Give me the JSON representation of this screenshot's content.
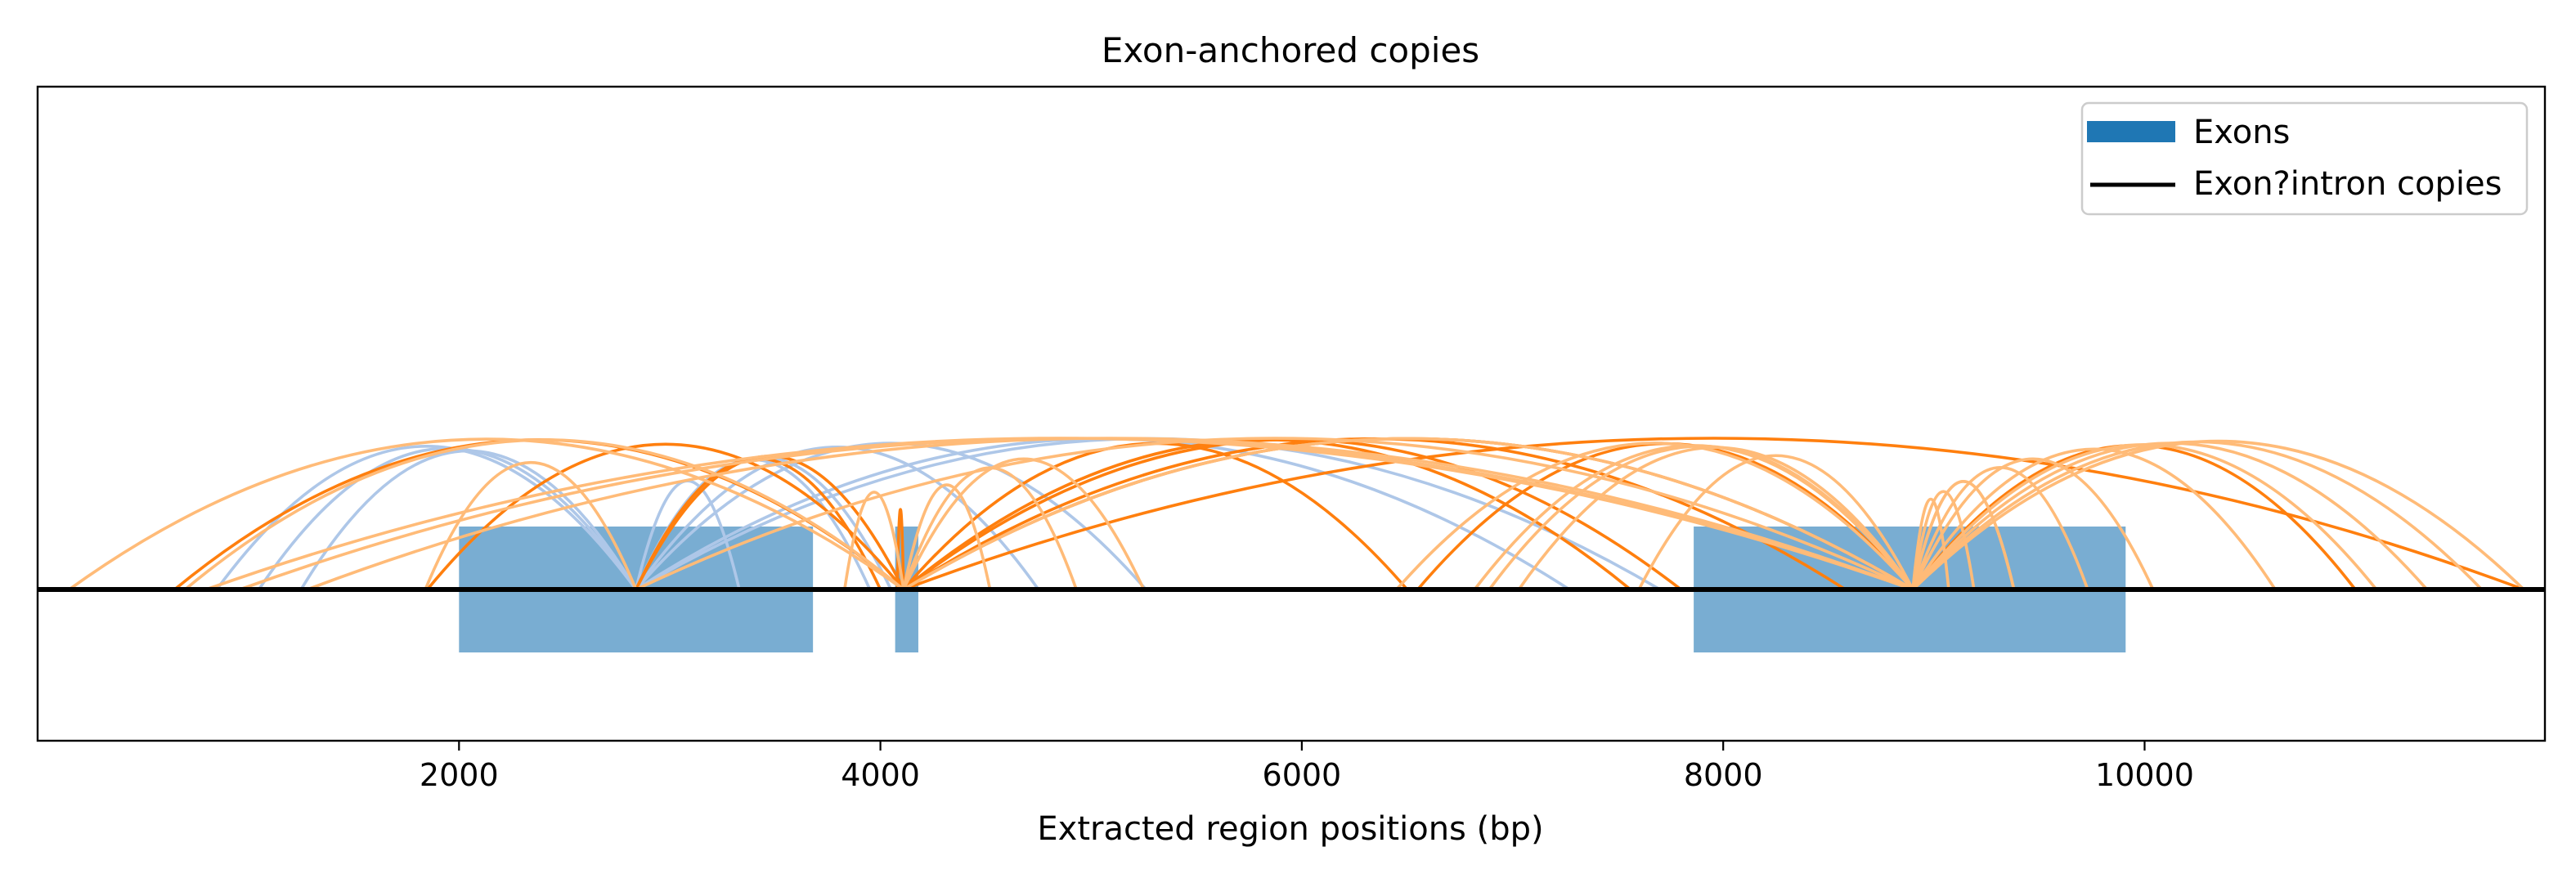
{
  "chart_data": {
    "type": "arc-diagram",
    "title": "Exon-anchored copies",
    "xlabel": "Extracted region positions (bp)",
    "ylabel": "",
    "xlim": [
      0,
      11900
    ],
    "xticks": [
      2000,
      4000,
      6000,
      8000,
      10000
    ],
    "grid": false,
    "legend_position": "top-right",
    "legend": [
      {
        "label": "Exons",
        "kind": "patch",
        "color": "#1f77b4"
      },
      {
        "label": "Exon?intron copies",
        "kind": "line",
        "color": "#000000"
      }
    ],
    "exons": [
      {
        "start": 2000,
        "end": 3680
      },
      {
        "start": 4070,
        "end": 4180
      },
      {
        "start": 7860,
        "end": 9910
      }
    ],
    "arc_colors": {
      "light_blue": "#aec7e8",
      "dark_orange": "#ff7f0e",
      "light_orange": "#ffbb78"
    },
    "arcs": [
      {
        "anchor": 2840,
        "end": 850,
        "color": "light_blue"
      },
      {
        "anchor": 2840,
        "end": 1050,
        "color": "light_blue"
      },
      {
        "anchor": 2840,
        "end": 1250,
        "color": "light_blue"
      },
      {
        "anchor": 2840,
        "end": 3330,
        "color": "light_blue"
      },
      {
        "anchor": 2840,
        "end": 3950,
        "color": "light_blue"
      },
      {
        "anchor": 2840,
        "end": 4050,
        "color": "light_blue"
      },
      {
        "anchor": 2840,
        "end": 4750,
        "color": "light_blue"
      },
      {
        "anchor": 2840,
        "end": 5260,
        "color": "light_blue"
      },
      {
        "anchor": 2840,
        "end": 7270,
        "color": "light_blue"
      },
      {
        "anchor": 2840,
        "end": 7700,
        "color": "light_blue"
      },
      {
        "anchor": 2840,
        "end": 4000,
        "color": "dark_orange"
      },
      {
        "anchor": 2840,
        "end": 1840,
        "color": "light_orange"
      },
      {
        "anchor": 4110,
        "end": 650,
        "color": "dark_orange"
      },
      {
        "anchor": 4110,
        "end": 1850,
        "color": "dark_orange"
      },
      {
        "anchor": 4110,
        "end": 2840,
        "color": "dark_orange"
      },
      {
        "anchor": 4110,
        "end": 4080,
        "color": "dark_orange"
      },
      {
        "anchor": 4110,
        "end": 6500,
        "color": "dark_orange"
      },
      {
        "anchor": 4110,
        "end": 7560,
        "color": "dark_orange"
      },
      {
        "anchor": 4110,
        "end": 7800,
        "color": "dark_orange"
      },
      {
        "anchor": 4110,
        "end": 8580,
        "color": "dark_orange"
      },
      {
        "anchor": 4110,
        "end": 8900,
        "color": "dark_orange"
      },
      {
        "anchor": 4110,
        "end": 11800,
        "color": "dark_orange"
      },
      {
        "anchor": 4110,
        "end": 150,
        "color": "light_orange"
      },
      {
        "anchor": 4110,
        "end": 700,
        "color": "light_orange"
      },
      {
        "anchor": 4110,
        "end": 3830,
        "color": "light_orange"
      },
      {
        "anchor": 4110,
        "end": 4520,
        "color": "light_orange"
      },
      {
        "anchor": 4110,
        "end": 4930,
        "color": "light_orange"
      },
      {
        "anchor": 4110,
        "end": 5250,
        "color": "light_orange"
      },
      {
        "anchor": 4110,
        "end": 8900,
        "color": "light_orange"
      },
      {
        "anchor": 8900,
        "end": 800,
        "color": "light_orange"
      },
      {
        "anchor": 8900,
        "end": 960,
        "color": "light_orange"
      },
      {
        "anchor": 8900,
        "end": 1280,
        "color": "light_orange"
      },
      {
        "anchor": 8900,
        "end": 2840,
        "color": "light_orange"
      },
      {
        "anchor": 8900,
        "end": 4110,
        "color": "light_orange"
      },
      {
        "anchor": 8900,
        "end": 6450,
        "color": "light_orange"
      },
      {
        "anchor": 8900,
        "end": 6820,
        "color": "light_orange"
      },
      {
        "anchor": 8900,
        "end": 6890,
        "color": "light_orange"
      },
      {
        "anchor": 8900,
        "end": 7030,
        "color": "light_orange"
      },
      {
        "anchor": 8900,
        "end": 7600,
        "color": "light_orange"
      },
      {
        "anchor": 8900,
        "end": 9070,
        "color": "light_orange"
      },
      {
        "anchor": 8900,
        "end": 9190,
        "color": "light_orange"
      },
      {
        "anchor": 8900,
        "end": 9380,
        "color": "light_orange"
      },
      {
        "anchor": 8900,
        "end": 9730,
        "color": "light_orange"
      },
      {
        "anchor": 8900,
        "end": 10040,
        "color": "light_orange"
      },
      {
        "anchor": 8900,
        "end": 10620,
        "color": "light_orange"
      },
      {
        "anchor": 8900,
        "end": 11100,
        "color": "light_orange"
      },
      {
        "anchor": 8900,
        "end": 11340,
        "color": "light_orange"
      },
      {
        "anchor": 8900,
        "end": 11600,
        "color": "light_orange"
      },
      {
        "anchor": 8900,
        "end": 11800,
        "color": "light_orange"
      },
      {
        "anchor": 9380,
        "end": 8900,
        "color": "light_orange"
      },
      {
        "anchor": 8900,
        "end": 6550,
        "color": "dark_orange"
      },
      {
        "anchor": 8900,
        "end": 11000,
        "color": "dark_orange"
      }
    ]
  }
}
